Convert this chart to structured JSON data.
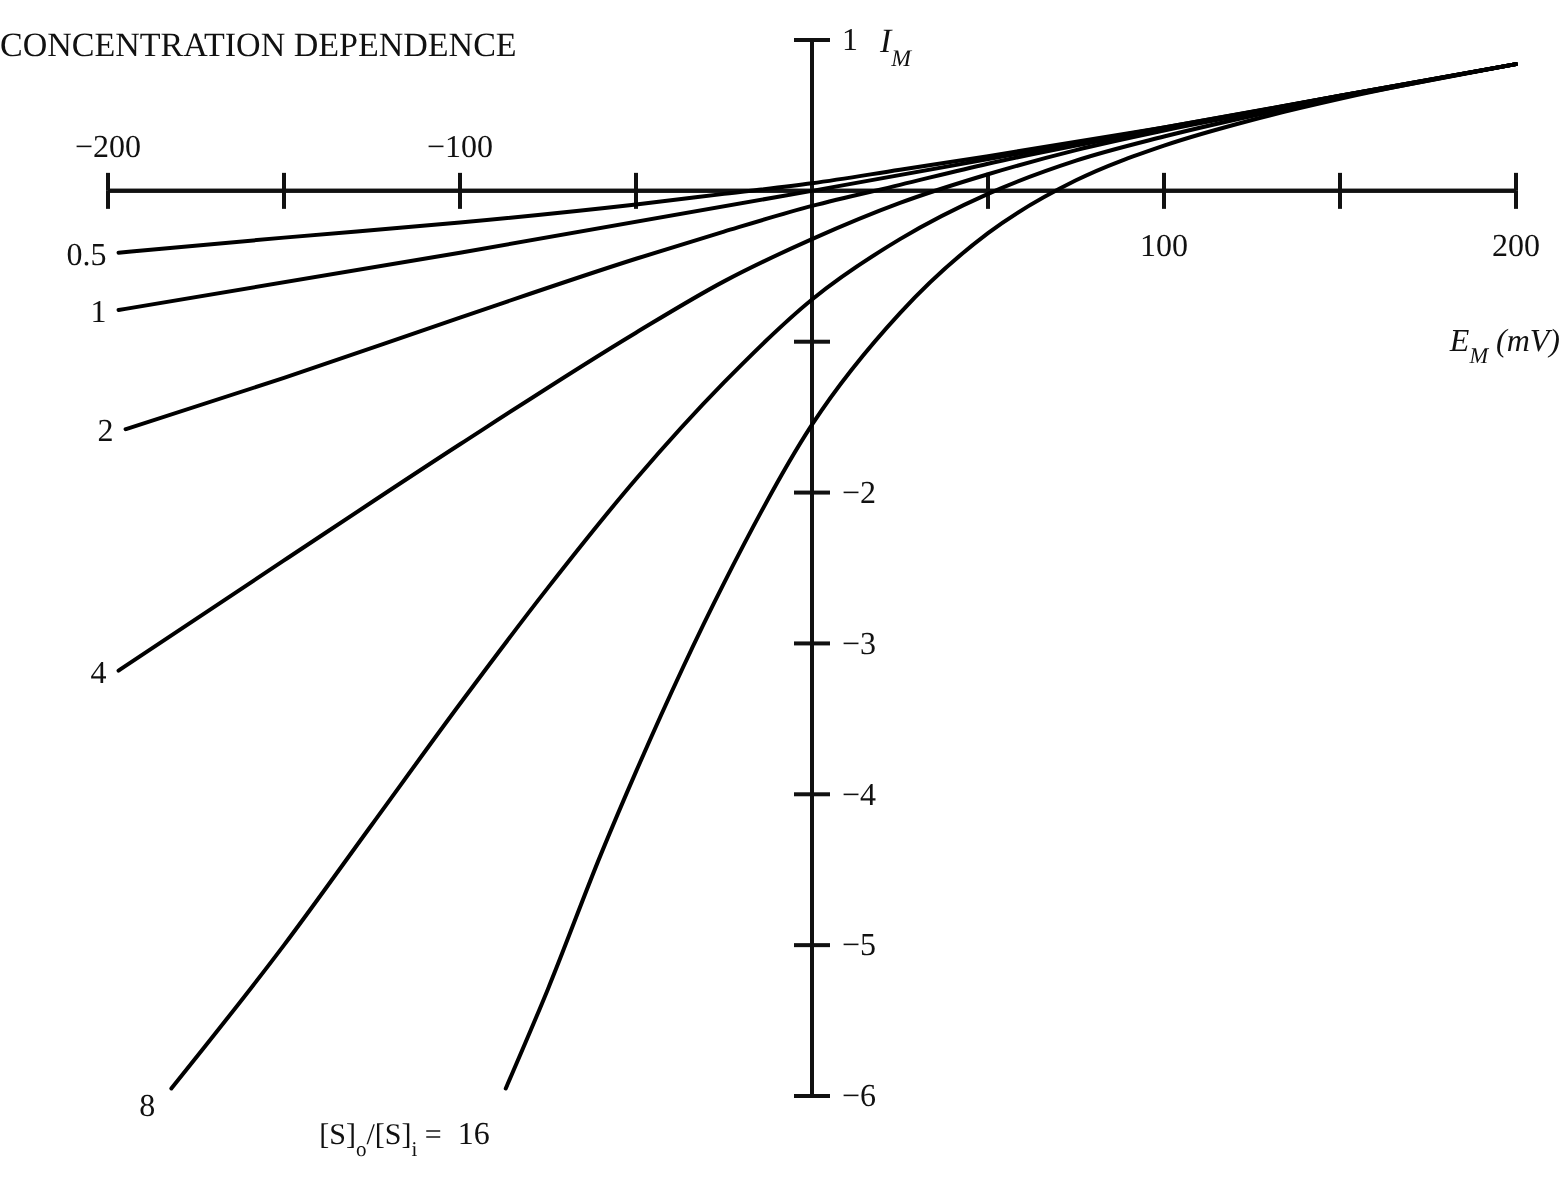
{
  "chart_data": {
    "type": "line",
    "title": "CONCENTRATION DEPENDENCE",
    "xlabel": "E$_{M}$ (mV)",
    "ylabel": "I$_{M}$",
    "legend_title": "[S]$_{o}$/[S]$_{i}$ =",
    "xlim": [
      -200,
      200
    ],
    "ylim": [
      -6,
      1
    ],
    "xticks": [
      {
        "value": -200,
        "label": null
      },
      {
        "value": -150,
        "label": null
      },
      {
        "value": -100,
        "label": null
      },
      {
        "value": -50,
        "label": null
      },
      {
        "value": 50,
        "label": null
      },
      100,
      {
        "value": 150,
        "label": null
      },
      200
    ],
    "x2lim": [
      -200,
      200
    ],
    "x2ticks": [
      -200,
      {
        "value": -150,
        "label": null
      },
      -100,
      {
        "value": -50,
        "label": null
      },
      {
        "value": 50,
        "label": null
      },
      {
        "value": 100,
        "label": null
      },
      {
        "value": 150,
        "label": null
      },
      {
        "value": 200,
        "label": null
      }
    ],
    "yticks": [
      1,
      {
        "value": -1,
        "label": null
      },
      -2,
      -3,
      -4,
      -5,
      -6
    ],
    "marker": "none",
    "line_style": "solid",
    "series": [
      {
        "name": "0.5",
        "color": "#000000",
        "x": [
          -197,
          -150,
          -100,
          -50,
          -25,
          0,
          25,
          50,
          100,
          150,
          200
        ],
        "values": [
          -0.41,
          -0.31,
          -0.21,
          -0.09,
          -0.02,
          0.05,
          0.14,
          0.23,
          0.42,
          0.63,
          0.84
        ]
      },
      {
        "name": "1",
        "color": "#000000",
        "x": [
          -197,
          -100,
          0,
          100,
          200
        ],
        "values": [
          -0.79,
          -0.41,
          0,
          0.42,
          0.84
        ]
      },
      {
        "name": "2",
        "color": "#000000",
        "x": [
          -195,
          -150,
          -100,
          -50,
          -25,
          0,
          25,
          50,
          75,
          100,
          150,
          200
        ],
        "values": [
          -1.58,
          -1.24,
          -0.84,
          -0.45,
          -0.27,
          -0.1,
          0.04,
          0.18,
          0.3,
          0.41,
          0.63,
          0.84
        ]
      },
      {
        "name": "4",
        "color": "#000000",
        "x": [
          -197,
          -150,
          -100,
          -50,
          -25,
          0,
          25,
          50,
          75,
          100,
          150,
          200
        ],
        "values": [
          -3.18,
          -2.45,
          -1.68,
          -0.94,
          -0.6,
          -0.32,
          -0.08,
          0.11,
          0.27,
          0.4,
          0.62,
          0.84
        ]
      },
      {
        "name": "8",
        "color": "#000000",
        "x": [
          -182,
          -150,
          -125,
          -100,
          -75,
          -50,
          -25,
          0,
          25,
          50,
          75,
          100,
          150,
          200
        ],
        "values": [
          -5.95,
          -5.0,
          -4.2,
          -3.4,
          -2.63,
          -1.91,
          -1.27,
          -0.72,
          -0.32,
          -0.02,
          0.2,
          0.36,
          0.62,
          0.84
        ]
      },
      {
        "name": "16",
        "color": "#000000",
        "x": [
          -87,
          -75,
          -60,
          -50,
          -25,
          0,
          25,
          50,
          75,
          100,
          125,
          150,
          200
        ],
        "values": [
          -5.95,
          -5.29,
          -4.4,
          -3.85,
          -2.6,
          -1.55,
          -0.81,
          -0.28,
          0.07,
          0.3,
          0.47,
          0.61,
          0.84
        ]
      }
    ]
  }
}
